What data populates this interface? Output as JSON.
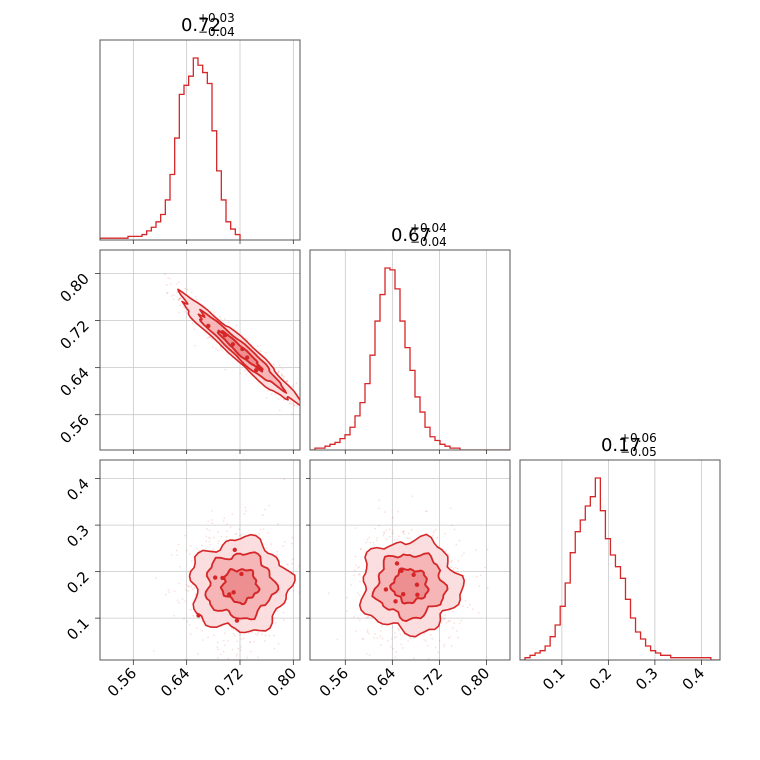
{
  "chart_data": {
    "type": "corner",
    "color": "#d62728",
    "parameters": [
      {
        "median": 0.72,
        "plus": "+0.03",
        "minus": "−0.04",
        "median_label": "0.72",
        "range": [
          0.51,
          0.81
        ],
        "ticks": [
          0.56,
          0.64,
          0.72,
          0.8
        ],
        "tick_labels": [
          "0.56",
          "0.64",
          "0.72",
          "0.80"
        ]
      },
      {
        "median": 0.67,
        "plus": "+0.04",
        "minus": "−0.04",
        "median_label": "0.67",
        "range": [
          0.5,
          0.84
        ],
        "ticks": [
          0.56,
          0.64,
          0.72,
          0.8
        ],
        "tick_labels": [
          "0.56",
          "0.64",
          "0.72",
          "0.80"
        ]
      },
      {
        "median": 0.17,
        "plus": "+0.06",
        "minus": "−0.05",
        "median_label": "0.17",
        "range": [
          0.01,
          0.44
        ],
        "ticks": [
          0.1,
          0.2,
          0.3,
          0.4
        ],
        "tick_labels": [
          "0.1",
          "0.2",
          "0.3",
          "0.4"
        ]
      }
    ],
    "histograms": [
      {
        "start": 0.51,
        "step": 0.007,
        "counts": [
          1,
          1,
          1,
          1,
          1,
          1,
          2,
          2,
          2,
          3,
          5,
          7,
          10,
          14,
          22,
          36,
          56,
          80,
          85,
          90,
          100,
          96,
          92,
          86,
          60,
          38,
          22,
          10,
          6,
          3
        ]
      },
      {
        "start": 0.5,
        "step": 0.0085,
        "counts": [
          0,
          1,
          1,
          2,
          3,
          4,
          6,
          8,
          12,
          18,
          25,
          35,
          50,
          68,
          82,
          96,
          95,
          85,
          68,
          54,
          42,
          28,
          20,
          12,
          7,
          5,
          3,
          2,
          1,
          1,
          0,
          0,
          0,
          0,
          0,
          0,
          0,
          0,
          0,
          0
        ]
      },
      {
        "start": 0.01,
        "step": 0.0108,
        "counts": [
          0,
          1,
          2,
          3,
          4,
          6,
          10,
          15,
          23,
          33,
          46,
          55,
          60,
          66,
          70,
          78,
          64,
          52,
          45,
          40,
          35,
          26,
          18,
          12,
          9,
          6,
          4,
          3,
          2,
          2,
          1,
          1,
          1,
          1,
          1,
          1,
          1,
          1,
          0,
          0
        ]
      }
    ],
    "correlations": {
      "p0_p1": -0.95,
      "p0_p2": 0.0,
      "p1_p2": 0.0
    }
  }
}
